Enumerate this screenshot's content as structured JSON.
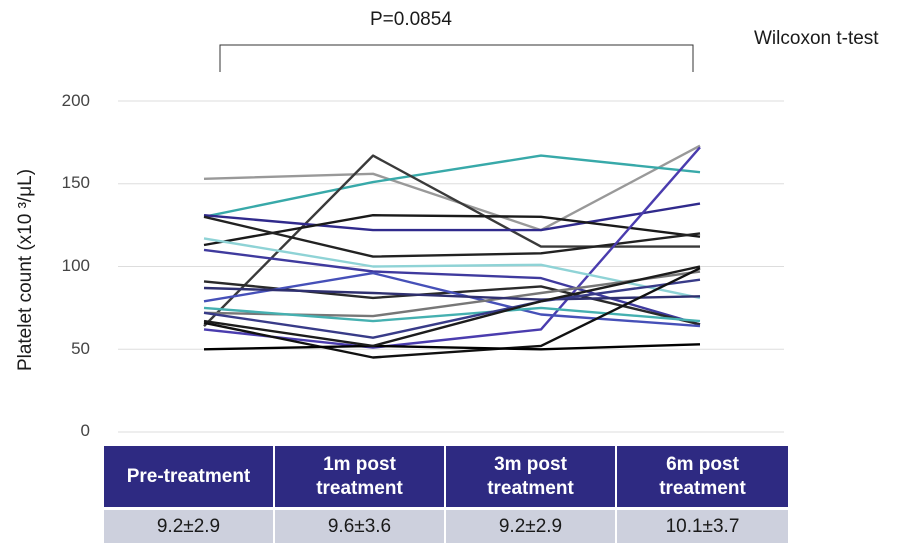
{
  "annotation": {
    "p_value": "P=0.0854",
    "test": "Wilcoxon t-test"
  },
  "colors": {
    "header_bg": "#2e2a82",
    "value_bg": "#cdd0dd",
    "grid": "#dddddd"
  },
  "chart_data": {
    "type": "line",
    "ylabel": "Platelet count (x10 ³/μL)",
    "xlabel": "",
    "ylim": [
      0,
      200
    ],
    "yticks": [
      "0",
      "50",
      "100",
      "150",
      "200"
    ],
    "grid": true,
    "categories": [
      "Pre-treatment",
      "1m post treatment",
      "3m post treatment",
      "6m post treatment"
    ],
    "series": [
      {
        "color": "#999999",
        "values": [
          153,
          156,
          122,
          173
        ]
      },
      {
        "color": "#38a9a9",
        "values": [
          130,
          151,
          167,
          157
        ]
      },
      {
        "color": "#3a3a3a",
        "values": [
          64,
          167,
          112,
          112
        ]
      },
      {
        "color": "#302a8c",
        "values": [
          131,
          122,
          122,
          138
        ]
      },
      {
        "color": "#1a1a1a",
        "values": [
          113,
          131,
          130,
          118
        ]
      },
      {
        "color": "#222222",
        "values": [
          130,
          106,
          108,
          120
        ]
      },
      {
        "color": "#4a3cae",
        "values": [
          62,
          51,
          62,
          172
        ]
      },
      {
        "color": "#8fd3d6",
        "values": [
          117,
          100,
          101,
          81
        ]
      },
      {
        "color": "#3f3a9e",
        "values": [
          110,
          97,
          93,
          65
        ]
      },
      {
        "color": "#2a2a2a",
        "values": [
          91,
          81,
          88,
          65
        ]
      },
      {
        "color": "#4650b8",
        "values": [
          79,
          96,
          71,
          64
        ]
      },
      {
        "color": "#777777",
        "values": [
          72,
          70,
          84,
          97
        ]
      },
      {
        "color": "#45b0b0",
        "values": [
          75,
          67,
          75,
          67
        ]
      },
      {
        "color": "#2f3070",
        "values": [
          87,
          84,
          80,
          82
        ]
      },
      {
        "color": "#383b88",
        "values": [
          72,
          57,
          79,
          92
        ]
      },
      {
        "color": "#111111",
        "values": [
          66,
          45,
          52,
          99
        ]
      },
      {
        "color": "#000000",
        "values": [
          50,
          52,
          50,
          53
        ]
      },
      {
        "color": "#1c1c1c",
        "values": [
          67,
          52,
          79,
          100
        ]
      }
    ]
  },
  "table": {
    "headers": [
      "Pre-treatment",
      "1m post\ntreatment",
      "3m post\ntreatment",
      "6m post\ntreatment"
    ],
    "values": [
      "9.2±2.9",
      "9.6±3.6",
      "9.2±2.9",
      "10.1±3.7"
    ]
  }
}
